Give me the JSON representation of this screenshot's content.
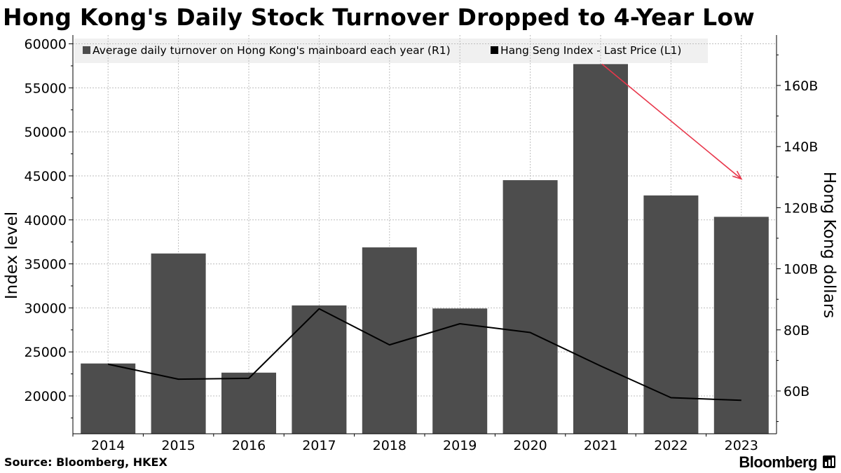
{
  "title": "Hong Kong's Daily Stock Turnover Dropped to 4-Year Low",
  "source": "Source: Bloomberg, HKEX",
  "brand": "Bloomberg",
  "colors": {
    "bars": "#4d4d4d",
    "line": "#000000",
    "arrow": "#e8374b",
    "grid": "#bdbdbd",
    "legend_bg": "#f0f0f0"
  },
  "chart_data": {
    "type": "bar+line",
    "categories": [
      "2014",
      "2015",
      "2016",
      "2017",
      "2018",
      "2019",
      "2020",
      "2021",
      "2022",
      "2023"
    ],
    "series": [
      {
        "name": "Average daily turnover on Hong Kong's mainboard each year (R1)",
        "type": "bar",
        "axis": "right",
        "unit": "billion HKD",
        "values": [
          69,
          105,
          66,
          88,
          107,
          87,
          129,
          167,
          124,
          117
        ]
      },
      {
        "name": "Hang Seng Index - Last Price (L1)",
        "type": "line",
        "axis": "left",
        "values": [
          23600,
          21900,
          22000,
          29900,
          25800,
          28200,
          27200,
          23400,
          19800,
          19500
        ]
      }
    ],
    "left_axis": {
      "label": "Index level",
      "range": [
        15700,
        61000
      ],
      "ticks": [
        20000,
        25000,
        30000,
        35000,
        40000,
        45000,
        50000,
        55000,
        60000
      ]
    },
    "right_axis": {
      "label": "Hong Kong dollars",
      "range": [
        46,
        176.5
      ],
      "ticks": [
        60,
        80,
        100,
        120,
        140,
        160
      ],
      "tick_labels": [
        "60B",
        "80B",
        "100B",
        "120B",
        "140B",
        "160B"
      ]
    },
    "legend": {
      "position": "top",
      "entries": [
        "Average daily turnover on Hong Kong's mainboard each year (R1)",
        "Hang Seng Index - Last Price (L1)"
      ]
    },
    "annotations": [
      {
        "type": "arrow",
        "from_category": "2021",
        "to_category": "2023",
        "color": "#e8374b"
      }
    ],
    "grid": true
  }
}
